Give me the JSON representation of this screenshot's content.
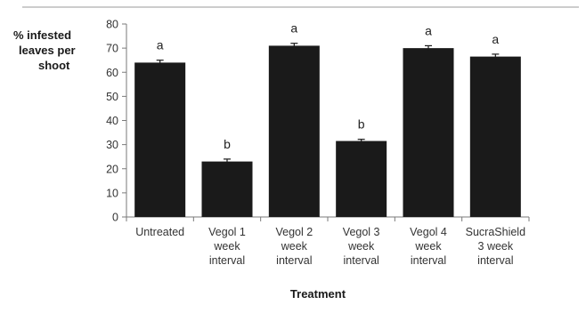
{
  "chart_data": {
    "type": "bar",
    "ylabel_lines": [
      "% infested",
      "leaves per",
      "shoot"
    ],
    "xlabel": "Treatment",
    "ylim": [
      0,
      80
    ],
    "yticks": [
      0,
      10,
      20,
      30,
      40,
      50,
      60,
      70,
      80
    ],
    "categories": [
      [
        "Untreated"
      ],
      [
        "Vegol 1",
        "week",
        "interval"
      ],
      [
        "Vegol 2",
        "week",
        "interval"
      ],
      [
        "Vegol 3",
        "week",
        "interval"
      ],
      [
        "Vegol 4",
        "week",
        "interval"
      ],
      [
        "SucraShield",
        "3 week",
        "interval"
      ]
    ],
    "values": [
      64,
      23,
      71,
      31.5,
      70,
      66.5
    ],
    "errors": [
      1,
      1,
      1,
      0.7,
      1,
      1
    ],
    "significance": [
      "a",
      "b",
      "a",
      "b",
      "a",
      "a"
    ],
    "bar_color": "#1a1a1a",
    "grid": false
  }
}
